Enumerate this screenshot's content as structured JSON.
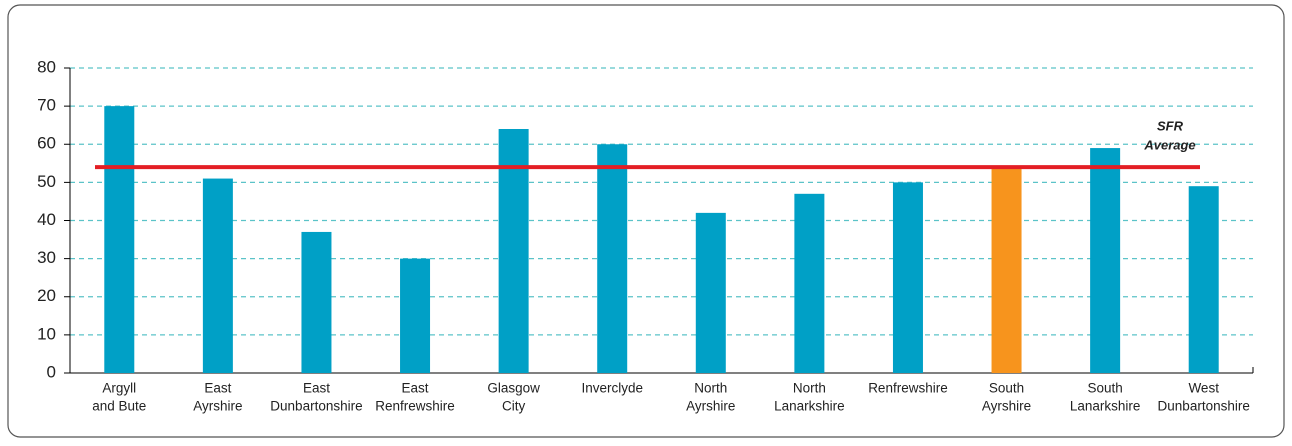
{
  "chart_data": {
    "type": "bar",
    "categories": [
      [
        "Argyll",
        "and Bute"
      ],
      [
        "East",
        "Ayrshire"
      ],
      [
        "East",
        "Dunbartonshire"
      ],
      [
        "East",
        "Renfrewshire"
      ],
      [
        "Glasgow",
        "City"
      ],
      [
        "Inverclyde"
      ],
      [
        "North",
        "Ayrshire"
      ],
      [
        "North",
        "Lanarkshire"
      ],
      [
        "Renfrewshire"
      ],
      [
        "South",
        "Ayrshire"
      ],
      [
        "South",
        "Lanarkshire"
      ],
      [
        "West",
        "Dunbartonshire"
      ]
    ],
    "values": [
      70,
      51,
      37,
      30,
      64,
      60,
      42,
      47,
      50,
      54,
      59,
      49
    ],
    "colors": [
      "#00a0c6",
      "#00a0c6",
      "#00a0c6",
      "#00a0c6",
      "#00a0c6",
      "#00a0c6",
      "#00a0c6",
      "#00a0c6",
      "#00a0c6",
      "#f7941d",
      "#00a0c6",
      "#00a0c6"
    ],
    "ylim": [
      0,
      80
    ],
    "yticks": [
      0,
      10,
      20,
      30,
      40,
      50,
      60,
      70,
      80
    ],
    "grid": true,
    "grid_color": "#5bc3c8",
    "reference_line": {
      "value": 54,
      "label": [
        "SFR",
        "Average"
      ],
      "color": "#e31e24"
    }
  }
}
